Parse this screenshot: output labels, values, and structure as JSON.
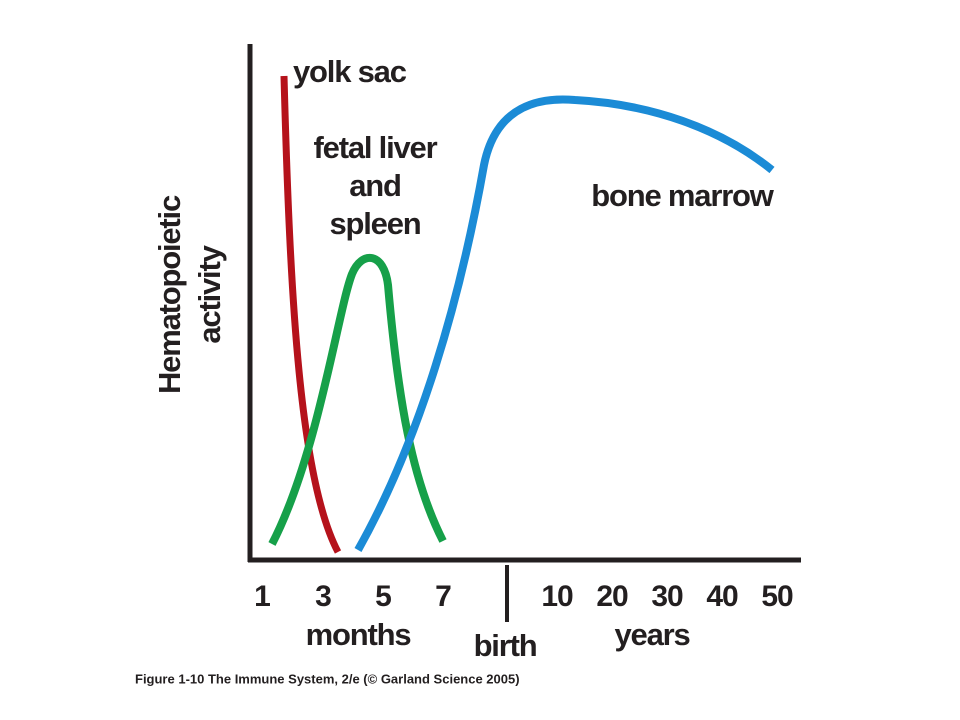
{
  "y_axis_label": [
    "Hematopoietic",
    "activity"
  ],
  "curve_labels": {
    "yolk_sac": "yolk sac",
    "fetal_liver": [
      "fetal liver",
      "and",
      "spleen"
    ],
    "bone_marrow": "bone marrow"
  },
  "x_ticks": {
    "months": [
      "1",
      "3",
      "5",
      "7"
    ],
    "years": [
      "10",
      "20",
      "30",
      "40",
      "50"
    ]
  },
  "x_labels": {
    "months": "months",
    "birth": "birth",
    "years": "years"
  },
  "caption": "Figure 1-10 The Immune System, 2/e (© Garland Science 2005)"
}
